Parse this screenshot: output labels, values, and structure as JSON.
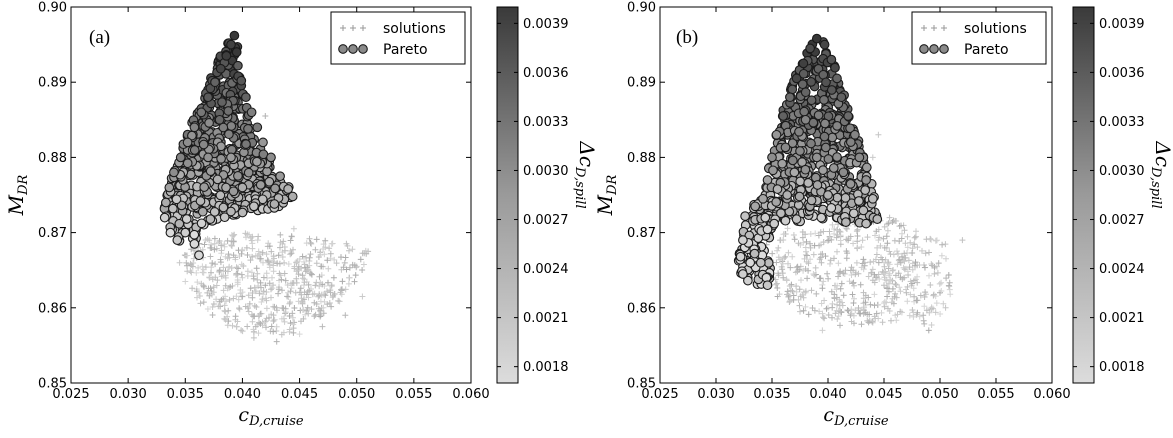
{
  "chart_data": [
    {
      "type": "scatter",
      "panel_label": "(a)",
      "xlabel_main": "c",
      "xlabel_sub": "D,cruise",
      "ylabel_main": "M",
      "ylabel_sub": "DR",
      "xlim": [
        0.025,
        0.06
      ],
      "ylim": [
        0.85,
        0.9
      ],
      "xticks": [
        "0.025",
        "0.030",
        "0.035",
        "0.040",
        "0.045",
        "0.050",
        "0.055",
        "0.060"
      ],
      "yticks": [
        "0.85",
        "0.86",
        "0.87",
        "0.88",
        "0.89",
        "0.90"
      ],
      "colorbar": {
        "label_main": "Δc",
        "label_sub": "D,spill",
        "range": [
          0.0017,
          0.004
        ],
        "ticks": [
          "0.0018",
          "0.0021",
          "0.0024",
          "0.0027",
          "0.0030",
          "0.0033",
          "0.0036",
          "0.0039"
        ],
        "colors": [
          "#dcdcdc",
          "#3a3a3a"
        ]
      },
      "legend": {
        "placement": "top-right",
        "entries": [
          "solutions",
          "Pareto"
        ]
      },
      "series": [
        {
          "name": "solutions",
          "marker": "plus",
          "points": [
            [
              0.0365,
              0.8655
            ],
            [
              0.038,
              0.865
            ],
            [
              0.04,
              0.864
            ],
            [
              0.042,
              0.863
            ],
            [
              0.044,
              0.862
            ],
            [
              0.046,
              0.8625
            ],
            [
              0.048,
              0.864
            ],
            [
              0.05,
              0.8655
            ],
            [
              0.051,
              0.8675
            ],
            [
              0.0395,
              0.8575
            ],
            [
              0.041,
              0.856
            ],
            [
              0.043,
              0.8555
            ],
            [
              0.045,
              0.8565
            ],
            [
              0.047,
              0.8575
            ],
            [
              0.049,
              0.859
            ],
            [
              0.0375,
              0.8605
            ],
            [
              0.035,
              0.8635
            ],
            [
              0.0345,
              0.866
            ],
            [
              0.0415,
              0.8665
            ],
            [
              0.0435,
              0.8685
            ],
            [
              0.0445,
              0.8705
            ],
            [
              0.0425,
              0.8745
            ],
            [
              0.041,
              0.8785
            ],
            [
              0.0405,
              0.8825
            ],
            [
              0.042,
              0.8855
            ],
            [
              0.044,
              0.875
            ],
            [
              0.0385,
              0.8595
            ],
            [
              0.036,
              0.8625
            ],
            [
              0.0465,
              0.8605
            ],
            [
              0.0505,
              0.8615
            ]
          ],
          "region_outline": [
            [
              0.0355,
              0.8625
            ],
            [
              0.0345,
              0.8685
            ],
            [
              0.04,
              0.87
            ],
            [
              0.0455,
              0.8695
            ],
            [
              0.051,
              0.868
            ],
            [
              0.0505,
              0.864
            ],
            [
              0.048,
              0.86
            ],
            [
              0.044,
              0.856
            ],
            [
              0.039,
              0.857
            ],
            [
              0.0365,
              0.86
            ]
          ]
        },
        {
          "name": "Pareto",
          "marker": "circle",
          "points": [
            [
              0.0393,
              0.8962
            ],
            [
              0.039,
              0.895
            ],
            [
              0.0386,
              0.8935
            ],
            [
              0.0395,
              0.894
            ],
            [
              0.0381,
              0.8918
            ],
            [
              0.0396,
              0.8922
            ],
            [
              0.0376,
              0.89
            ],
            [
              0.0399,
              0.8902
            ],
            [
              0.037,
              0.888
            ],
            [
              0.0403,
              0.888
            ],
            [
              0.0364,
              0.886
            ],
            [
              0.0408,
              0.886
            ],
            [
              0.0358,
              0.884
            ],
            [
              0.0413,
              0.884
            ],
            [
              0.0352,
              0.882
            ],
            [
              0.0418,
              0.882
            ],
            [
              0.0346,
              0.88
            ],
            [
              0.0425,
              0.88
            ],
            [
              0.034,
              0.878
            ],
            [
              0.0433,
              0.8775
            ],
            [
              0.0336,
              0.876
            ],
            [
              0.044,
              0.8758
            ],
            [
              0.0333,
              0.874
            ],
            [
              0.0444,
              0.8748
            ],
            [
              0.0332,
              0.872
            ],
            [
              0.0337,
              0.87
            ],
            [
              0.0343,
              0.869
            ],
            [
              0.035,
              0.87
            ],
            [
              0.0358,
              0.8685
            ],
            [
              0.0362,
              0.867
            ],
            [
              0.0372,
              0.8718
            ],
            [
              0.039,
              0.8728
            ],
            [
              0.041,
              0.8735
            ],
            [
              0.0428,
              0.8738
            ],
            [
              0.038,
              0.885
            ],
            [
              0.039,
              0.88
            ],
            [
              0.037,
              0.88
            ],
            [
              0.04,
              0.876
            ]
          ],
          "region_outline": [
            [
              0.0393,
              0.8962
            ],
            [
              0.0384,
              0.8948
            ],
            [
              0.0372,
              0.8905
            ],
            [
              0.0362,
              0.8868
            ],
            [
              0.0348,
              0.8818
            ],
            [
              0.0337,
              0.877
            ],
            [
              0.0331,
              0.8735
            ],
            [
              0.0333,
              0.8705
            ],
            [
              0.0341,
              0.8688
            ],
            [
              0.0358,
              0.8688
            ],
            [
              0.0368,
              0.8712
            ],
            [
              0.0392,
              0.8722
            ],
            [
              0.042,
              0.873
            ],
            [
              0.0443,
              0.8738
            ],
            [
              0.0444,
              0.8755
            ],
            [
              0.043,
              0.878
            ],
            [
              0.0417,
              0.881
            ],
            [
              0.0409,
              0.884
            ],
            [
              0.0402,
              0.8875
            ],
            [
              0.0397,
              0.8915
            ],
            [
              0.0396,
              0.8945
            ]
          ]
        }
      ]
    },
    {
      "type": "scatter",
      "panel_label": "(b)",
      "xlabel_main": "c",
      "xlabel_sub": "D,cruise",
      "ylabel_main": "M",
      "ylabel_sub": "DR",
      "xlim": [
        0.025,
        0.06
      ],
      "ylim": [
        0.85,
        0.9
      ],
      "xticks": [
        "0.025",
        "0.030",
        "0.035",
        "0.040",
        "0.045",
        "0.050",
        "0.055",
        "0.060"
      ],
      "yticks": [
        "0.85",
        "0.86",
        "0.87",
        "0.88",
        "0.89",
        "0.90"
      ],
      "colorbar": {
        "label_main": "Δc",
        "label_sub": "D,spill",
        "range": [
          0.0017,
          0.004
        ],
        "ticks": [
          "0.0018",
          "0.0021",
          "0.0024",
          "0.0027",
          "0.0030",
          "0.0033",
          "0.0036",
          "0.0039"
        ],
        "colors": [
          "#dcdcdc",
          "#3a3a3a"
        ]
      },
      "legend": {
        "placement": "top-right",
        "entries": [
          "solutions",
          "Pareto"
        ]
      },
      "series": [
        {
          "name": "solutions",
          "marker": "plus",
          "points": [
            [
              0.033,
              0.869
            ],
            [
              0.0345,
              0.866
            ],
            [
              0.036,
              0.864
            ],
            [
              0.038,
              0.862
            ],
            [
              0.04,
              0.86
            ],
            [
              0.042,
              0.859
            ],
            [
              0.044,
              0.858
            ],
            [
              0.046,
              0.859
            ],
            [
              0.048,
              0.861
            ],
            [
              0.05,
              0.862
            ],
            [
              0.052,
              0.869
            ],
            [
              0.049,
              0.857
            ],
            [
              0.0505,
              0.86
            ],
            [
              0.045,
              0.863
            ],
            [
              0.0465,
              0.866
            ],
            [
              0.0445,
              0.869
            ],
            [
              0.0455,
              0.872
            ],
            [
              0.044,
              0.88
            ],
            [
              0.0445,
              0.883
            ],
            [
              0.043,
              0.878
            ],
            [
              0.0395,
              0.857
            ],
            [
              0.0375,
              0.8595
            ],
            [
              0.0355,
              0.8615
            ],
            [
              0.047,
              0.862
            ],
            [
              0.0485,
              0.859
            ],
            [
              0.0415,
              0.8645
            ]
          ],
          "region_outline": [
            [
              0.033,
              0.87
            ],
            [
              0.036,
              0.8705
            ],
            [
              0.042,
              0.8715
            ],
            [
              0.046,
              0.872
            ],
            [
              0.0505,
              0.8685
            ],
            [
              0.051,
              0.862
            ],
            [
              0.0495,
              0.8575
            ],
            [
              0.0455,
              0.858
            ],
            [
              0.041,
              0.8575
            ],
            [
              0.0375,
              0.8595
            ],
            [
              0.035,
              0.862
            ],
            [
              0.0335,
              0.866
            ]
          ]
        },
        {
          "name": "Pareto",
          "marker": "circle",
          "points": [
            [
              0.039,
              0.8958
            ],
            [
              0.0384,
              0.8945
            ],
            [
              0.0397,
              0.895
            ],
            [
              0.0378,
              0.8925
            ],
            [
              0.0403,
              0.893
            ],
            [
              0.0372,
              0.8905
            ],
            [
              0.0408,
              0.8905
            ],
            [
              0.0366,
              0.888
            ],
            [
              0.0412,
              0.888
            ],
            [
              0.036,
              0.8855
            ],
            [
              0.0418,
              0.8855
            ],
            [
              0.0354,
              0.883
            ],
            [
              0.0424,
              0.883
            ],
            [
              0.035,
              0.88
            ],
            [
              0.0428,
              0.88
            ],
            [
              0.0346,
              0.877
            ],
            [
              0.0434,
              0.877
            ],
            [
              0.0342,
              0.8745
            ],
            [
              0.044,
              0.8745
            ],
            [
              0.0344,
              0.872
            ],
            [
              0.0444,
              0.8718
            ],
            [
              0.0352,
              0.8712
            ],
            [
              0.0372,
              0.8718
            ],
            [
              0.0394,
              0.872
            ],
            [
              0.0416,
              0.8714
            ],
            [
              0.0434,
              0.8712
            ],
            [
              0.0335,
              0.8735
            ],
            [
              0.0326,
              0.8722
            ],
            [
              0.0324,
              0.869
            ],
            [
              0.0322,
              0.8668
            ],
            [
              0.0324,
              0.8645
            ],
            [
              0.034,
              0.866
            ],
            [
              0.0345,
              0.864
            ],
            [
              0.0346,
              0.863
            ],
            [
              0.038,
              0.885
            ],
            [
              0.039,
              0.88
            ],
            [
              0.037,
              0.878
            ],
            [
              0.04,
              0.875
            ]
          ],
          "region_outline": [
            [
              0.039,
              0.8958
            ],
            [
              0.038,
              0.8942
            ],
            [
              0.0371,
              0.891
            ],
            [
              0.0362,
              0.8872
            ],
            [
              0.0352,
              0.8825
            ],
            [
              0.0345,
              0.878
            ],
            [
              0.034,
              0.8748
            ],
            [
              0.033,
              0.873
            ],
            [
              0.0322,
              0.87
            ],
            [
              0.032,
              0.8665
            ],
            [
              0.0323,
              0.864
            ],
            [
              0.034,
              0.8628
            ],
            [
              0.0349,
              0.864
            ],
            [
              0.0349,
              0.8695
            ],
            [
              0.036,
              0.8712
            ],
            [
              0.0392,
              0.8718
            ],
            [
              0.0425,
              0.8712
            ],
            [
              0.0445,
              0.8712
            ],
            [
              0.0442,
              0.875
            ],
            [
              0.0436,
              0.8785
            ],
            [
              0.0428,
              0.882
            ],
            [
              0.042,
              0.8855
            ],
            [
              0.0413,
              0.889
            ],
            [
              0.0405,
              0.8925
            ],
            [
              0.0398,
              0.8952
            ]
          ]
        }
      ]
    }
  ]
}
